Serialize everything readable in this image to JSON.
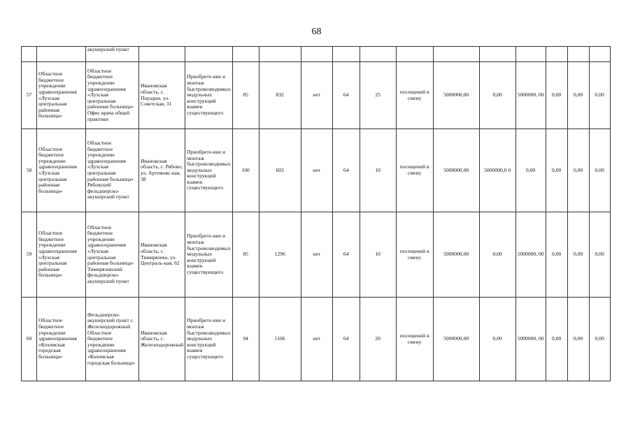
{
  "page_number": "68",
  "continuation": {
    "col3": "акушерский пункт"
  },
  "rows": [
    {
      "num": "57",
      "org": "Областное бюджетное учреждение здравоохранения «Лухская центральная районная больница»",
      "facility": "Областное бюджетное учреждение здравоохранения «Лухская центральная районная больница» Офис врача общей практики",
      "address": "Ивановская область, с. Порздни, ул. Советская, 31",
      "work": "Приобрете-ние и монтаж быстровозводимых модульных конструкций взамен существующего",
      "c6": "85",
      "c7": "832",
      "c8": "нет",
      "c9": "64",
      "c10": "25",
      "c11": "посещений в смену",
      "c12": "5000000,00",
      "c13": "0,00",
      "c14": "5000000, 00",
      "c15": "0,00",
      "c16": "0,00",
      "c17": "0,00"
    },
    {
      "num": "58",
      "org": "Областное бюджетное учреждение здравоохранения «Лухская центральная районная больница»",
      "facility": "Областное бюджетное учреждение здравоохранения «Лухская центральная районная больница» Рябовский фельдшерско-акушерский пункт",
      "address": "Ивановская область, с. Рябово, ул. Артемовс-кая, 38",
      "work": "Приобрете-ние и монтаж быстровозводимых модульных конструкций взамен существующего",
      "c6": "100",
      "c7": "603",
      "c8": "нет",
      "c9": "64",
      "c10": "10",
      "c11": "посещений в смену",
      "c12": "5000000,00",
      "c13": "5000000,0 0",
      "c14": "0,00",
      "c15": "0,00",
      "c16": "0,00",
      "c17": "0,00"
    },
    {
      "num": "59",
      "org": "Областное бюджетное учреждение здравоохранения «Лухская центральная районная больница»",
      "facility": "Областное бюджетное учреждение здравоохранения «Лухская центральная районная больница» Тимирязевский фельдшерско-акушерский пункт",
      "address": "Ивановская область, с. Тимирязево, ул. Централь-ная, 62",
      "work": "Приобрете-ние и монтаж быстровозводимых модульных конструкций взамен существующего",
      "c6": "85",
      "c7": "1296",
      "c8": "нет",
      "c9": "64",
      "c10": "10",
      "c11": "посещений в смену",
      "c12": "5000000,00",
      "c13": "0,00",
      "c14": "5000000, 00",
      "c15": "0,00",
      "c16": "0,00",
      "c17": "0,00"
    },
    {
      "num": "60",
      "org": "Областное бюджетное учреждение здравоохранения «Кохомская городская больница»",
      "facility": "Фельдшерско-акушерский пункт с. Железнодорожный Областное бюджетное учреждение здравоохранения «Кохомская городская больница»",
      "address": "Ивановская область, с. Железнодорожный",
      "work": "Приобрете-ние и монтаж быстровозводимых модульных конструкций взамен существующего",
      "c6": "94",
      "c7": "1106",
      "c8": "нет",
      "c9": "64",
      "c10": "20",
      "c11": "посещений в смену",
      "c12": "5000000,00",
      "c13": "0,00",
      "c14": "5000000, 00",
      "c15": "0,00",
      "c16": "0,00",
      "c17": "0,00"
    }
  ]
}
